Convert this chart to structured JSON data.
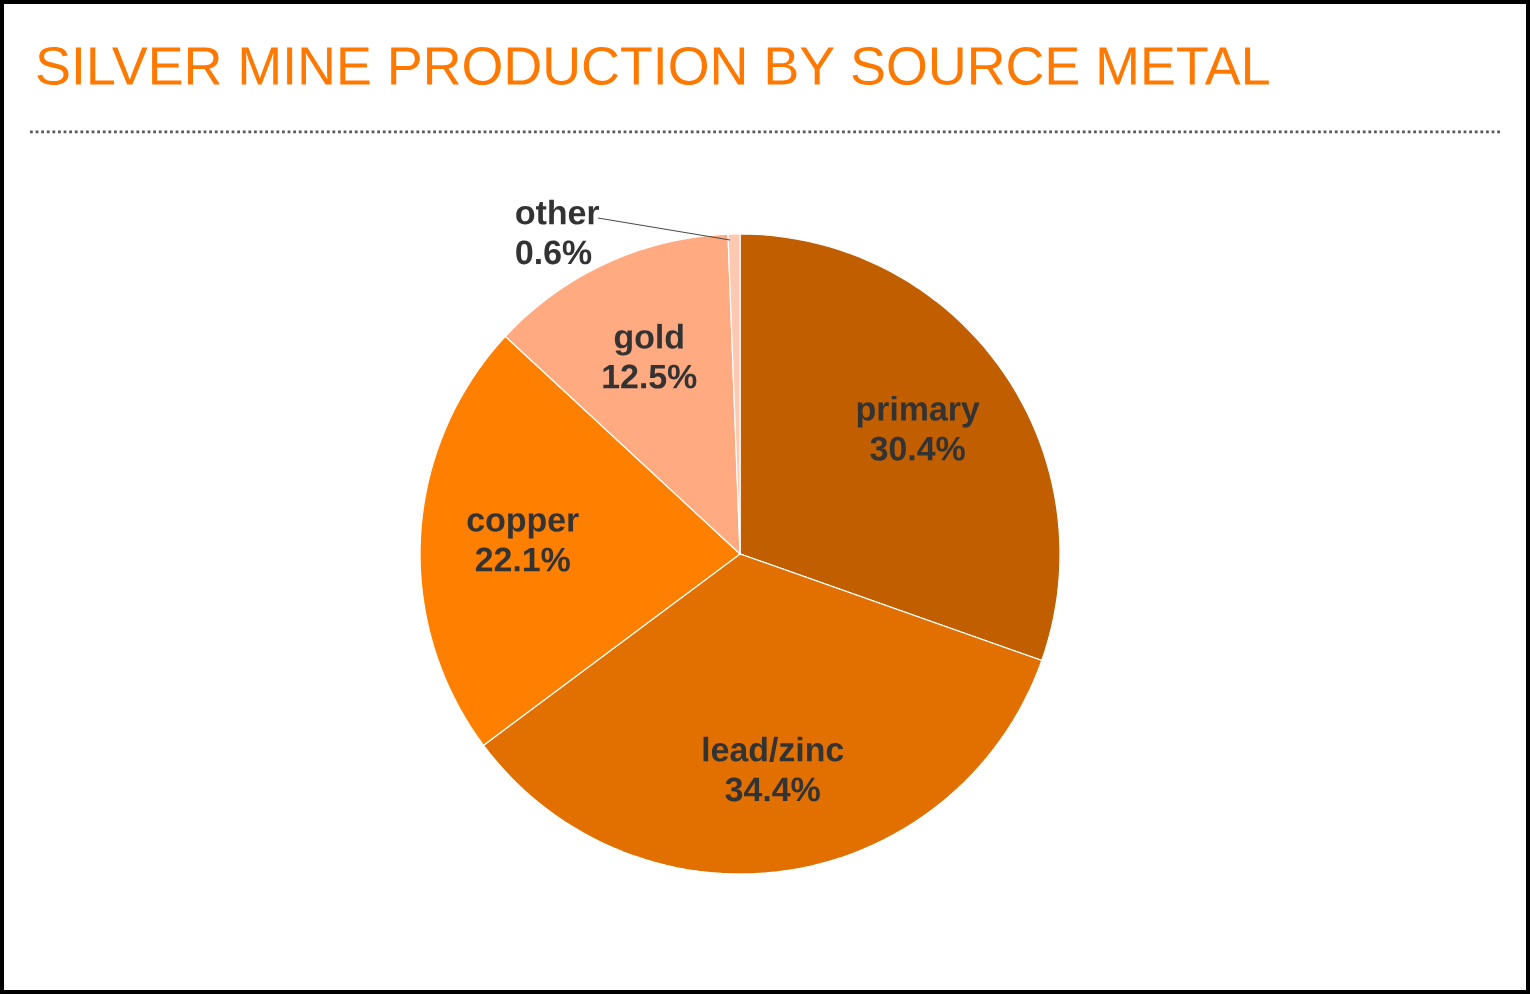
{
  "chart_data": {
    "type": "pie",
    "title": "SILVER MINE PRODUCTION BY SOURCE METAL",
    "categories": [
      "primary",
      "lead/zinc",
      "copper",
      "gold",
      "other"
    ],
    "values": [
      30.4,
      34.4,
      22.1,
      12.5,
      0.6
    ],
    "value_labels": [
      "30.4%",
      "34.4%",
      "22.1%",
      "12.5%",
      "0.6%"
    ],
    "colors": [
      "#c05e00",
      "#e27000",
      "#ff8000",
      "#ffaa80",
      "#ffc8b0"
    ]
  }
}
